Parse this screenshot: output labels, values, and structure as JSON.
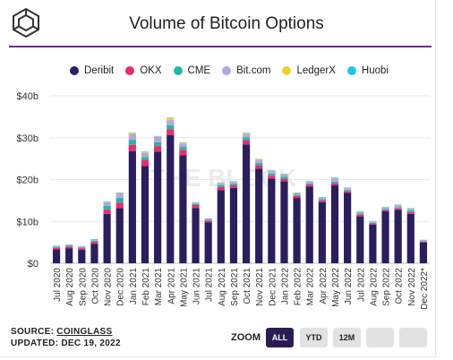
{
  "title": "Volume of Bitcoin Options",
  "watermark": "THE BLOCK",
  "footer": {
    "source_prefix": "SOURCE: ",
    "source_name": "COINGLASS",
    "updated": "UPDATED: DEC 19, 2022"
  },
  "zoom": {
    "label": "ZOOM",
    "buttons": [
      "ALL",
      "YTD",
      "12M"
    ],
    "active": "ALL"
  },
  "colors": {
    "Deribit": "#2b1e5c",
    "OKX": "#ee2a6b",
    "CME": "#27b5a8",
    "Bit.com": "#b3a6e0",
    "LedgerX": "#f3cf2c",
    "Huobi": "#1fc6e8",
    "header_rule": "#6c2a91"
  },
  "chart_data": {
    "type": "bar",
    "stacked": true,
    "title": "Volume of Bitcoin Options",
    "xlabel": "",
    "ylabel": "",
    "ylim": [
      0,
      40
    ],
    "y_unit": "b",
    "yticks": [
      "$0",
      "$10b",
      "$20b",
      "$30b",
      "$40b"
    ],
    "grid": true,
    "legend_position": "top",
    "categories": [
      "Jul 2020",
      "Aug 2020",
      "Sep 2020",
      "Oct 2020",
      "Nov 2020",
      "Dec 2020",
      "Jan 2021",
      "Feb 2021",
      "Mar 2021",
      "Apr 2021",
      "May 2021",
      "Jun 2021",
      "Jul 2021",
      "Aug 2021",
      "Sep 2021",
      "Oct 2021",
      "Nov 2021",
      "Dec 2021",
      "Jan 2022",
      "Feb 2022",
      "Mar 2022",
      "Apr 2022",
      "May 2022",
      "Jun 2022",
      "Jul 2022",
      "Aug 2022",
      "Sep 2022",
      "Oct 2022",
      "Nov 2022",
      "Dec 2022*"
    ],
    "series": [
      {
        "name": "Deribit",
        "values": [
          3.3,
          3.6,
          3.2,
          4.6,
          11.8,
          13.2,
          26.8,
          23.2,
          26.7,
          30.6,
          25.8,
          13.2,
          9.8,
          17.5,
          18.0,
          28.4,
          22.6,
          20.2,
          19.6,
          15.6,
          18.3,
          14.6,
          18.6,
          16.8,
          11.2,
          9.2,
          12.4,
          12.8,
          11.8,
          5.0
        ]
      },
      {
        "name": "OKX",
        "values": [
          0.4,
          0.4,
          0.4,
          0.5,
          1.0,
          1.3,
          1.5,
          1.4,
          1.3,
          1.4,
          1.3,
          0.7,
          0.4,
          0.7,
          0.6,
          0.9,
          0.8,
          0.7,
          0.6,
          0.5,
          0.5,
          0.4,
          0.5,
          0.4,
          0.4,
          0.3,
          0.3,
          0.3,
          0.4,
          0.2
        ]
      },
      {
        "name": "CME",
        "values": [
          0.2,
          0.2,
          0.2,
          0.3,
          0.9,
          1.1,
          1.2,
          0.8,
          0.9,
          1.0,
          0.7,
          0.3,
          0.2,
          0.4,
          0.4,
          0.8,
          0.6,
          0.5,
          0.5,
          0.3,
          0.3,
          0.3,
          0.4,
          0.3,
          0.3,
          0.2,
          0.3,
          0.3,
          0.4,
          0.1
        ]
      },
      {
        "name": "Bit.com",
        "values": [
          0.2,
          0.2,
          0.2,
          0.3,
          0.9,
          1.1,
          1.3,
          0.9,
          1.3,
          1.2,
          0.8,
          0.2,
          0.2,
          0.5,
          0.4,
          0.7,
          0.6,
          0.6,
          0.5,
          0.3,
          0.4,
          0.3,
          0.8,
          0.4,
          0.3,
          0.2,
          0.3,
          0.4,
          0.4,
          0.2
        ]
      },
      {
        "name": "LedgerX",
        "values": [
          0.0,
          0.0,
          0.0,
          0.0,
          0.1,
          0.1,
          0.3,
          0.3,
          0.1,
          0.5,
          0.2,
          0.1,
          0.0,
          0.1,
          0.1,
          0.3,
          0.2,
          0.1,
          0.1,
          0.1,
          0.1,
          0.1,
          0.1,
          0.1,
          0.1,
          0.1,
          0.1,
          0.1,
          0.1,
          0.0
        ]
      },
      {
        "name": "Huobi",
        "values": [
          0.1,
          0.1,
          0.1,
          0.1,
          0.1,
          0.1,
          0.1,
          0.1,
          0.1,
          0.1,
          0.1,
          0.1,
          0.1,
          0.1,
          0.1,
          0.1,
          0.1,
          0.1,
          0.1,
          0.1,
          0.1,
          0.1,
          0.1,
          0.1,
          0.1,
          0.1,
          0.1,
          0.1,
          0.1,
          0.1
        ]
      }
    ]
  }
}
